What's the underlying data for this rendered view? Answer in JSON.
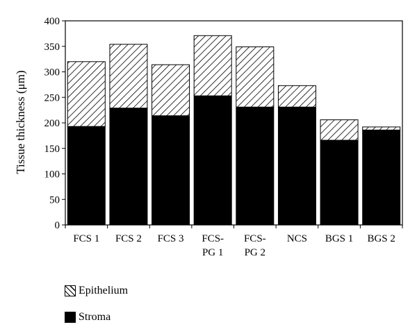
{
  "chart_data": {
    "type": "bar",
    "stacked": true,
    "categories": [
      "FCS 1",
      "FCS 2",
      "FCS 3",
      "FCS-\nPG 1",
      "FCS-\nPG 2",
      "NCS",
      "BGS 1",
      "BGS 2"
    ],
    "series": [
      {
        "name": "Stroma",
        "values": [
          193,
          229,
          214,
          253,
          231,
          231,
          166,
          186
        ],
        "fill": "solid",
        "color": "#000000"
      },
      {
        "name": "Epithelium",
        "values": [
          127,
          125,
          100,
          118,
          118,
          42,
          40,
          6
        ],
        "fill": "diagonal-hatch",
        "color": "#000000"
      }
    ],
    "ylabel": "Tissue thickness (μm)",
    "xlabel": "",
    "title": "",
    "ylim": [
      0,
      400
    ],
    "yticks": [
      0,
      50,
      100,
      150,
      200,
      250,
      300,
      350,
      400
    ],
    "grid": false,
    "legend_position": "bottom-left"
  },
  "legend": {
    "items": [
      {
        "label": "Epithelium",
        "swatch": "hatch"
      },
      {
        "label": "Stroma",
        "swatch": "solid"
      }
    ]
  }
}
